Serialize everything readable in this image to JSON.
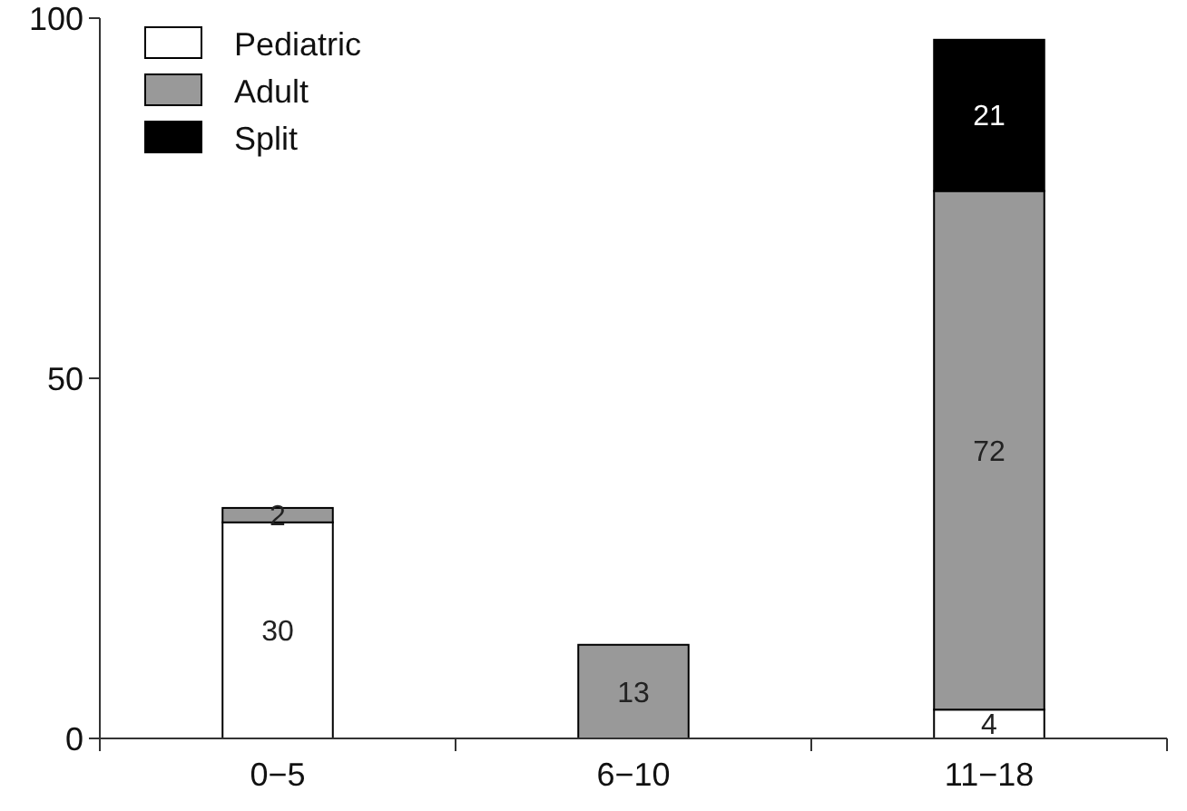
{
  "chart_data": {
    "type": "bar",
    "stacked": true,
    "categories": [
      "0−5",
      "6−10",
      "11−18"
    ],
    "series": [
      {
        "name": "Pediatric",
        "color": "#ffffff",
        "values": [
          30,
          0,
          4
        ],
        "value_labels": [
          "30",
          null,
          "4"
        ]
      },
      {
        "name": "Adult",
        "color": "#999999",
        "values": [
          2,
          13,
          72
        ],
        "value_labels": [
          "2",
          "13",
          "72"
        ]
      },
      {
        "name": "Split",
        "color": "#000000",
        "values": [
          0,
          0,
          21
        ],
        "value_labels": [
          null,
          null,
          "21"
        ]
      }
    ],
    "ylim": [
      0,
      100
    ],
    "yticks": [
      0,
      50,
      100
    ],
    "grid": false,
    "legend": "top left"
  }
}
